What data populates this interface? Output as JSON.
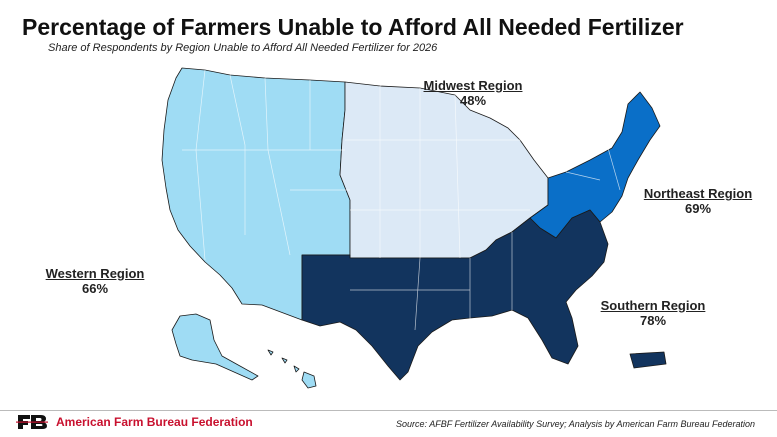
{
  "title": "Percentage of Farmers Unable to Afford All Needed Fertilizer",
  "subtitle": "Share of Respondents by Region Unable to Afford All Needed Fertilizer for 2026",
  "regions": {
    "western": {
      "name": "Western Region",
      "value": "66%",
      "color": "#9fdcf4"
    },
    "midwest": {
      "name": "Midwest Region",
      "value": "48%",
      "color": "#dce9f6"
    },
    "northeast": {
      "name": "Northeast Region",
      "value": "69%",
      "color": "#0a6fc8"
    },
    "southern": {
      "name": "Southern Region",
      "value": "78%",
      "color": "#12345e"
    }
  },
  "footer": {
    "organization": "American Farm Bureau Federation",
    "source": "Source: AFBF Fertilizer Availability Survey; Analysis by American Farm Bureau Federation"
  },
  "colors": {
    "logo": "#c8102e",
    "border": "#1a1a1a"
  }
}
